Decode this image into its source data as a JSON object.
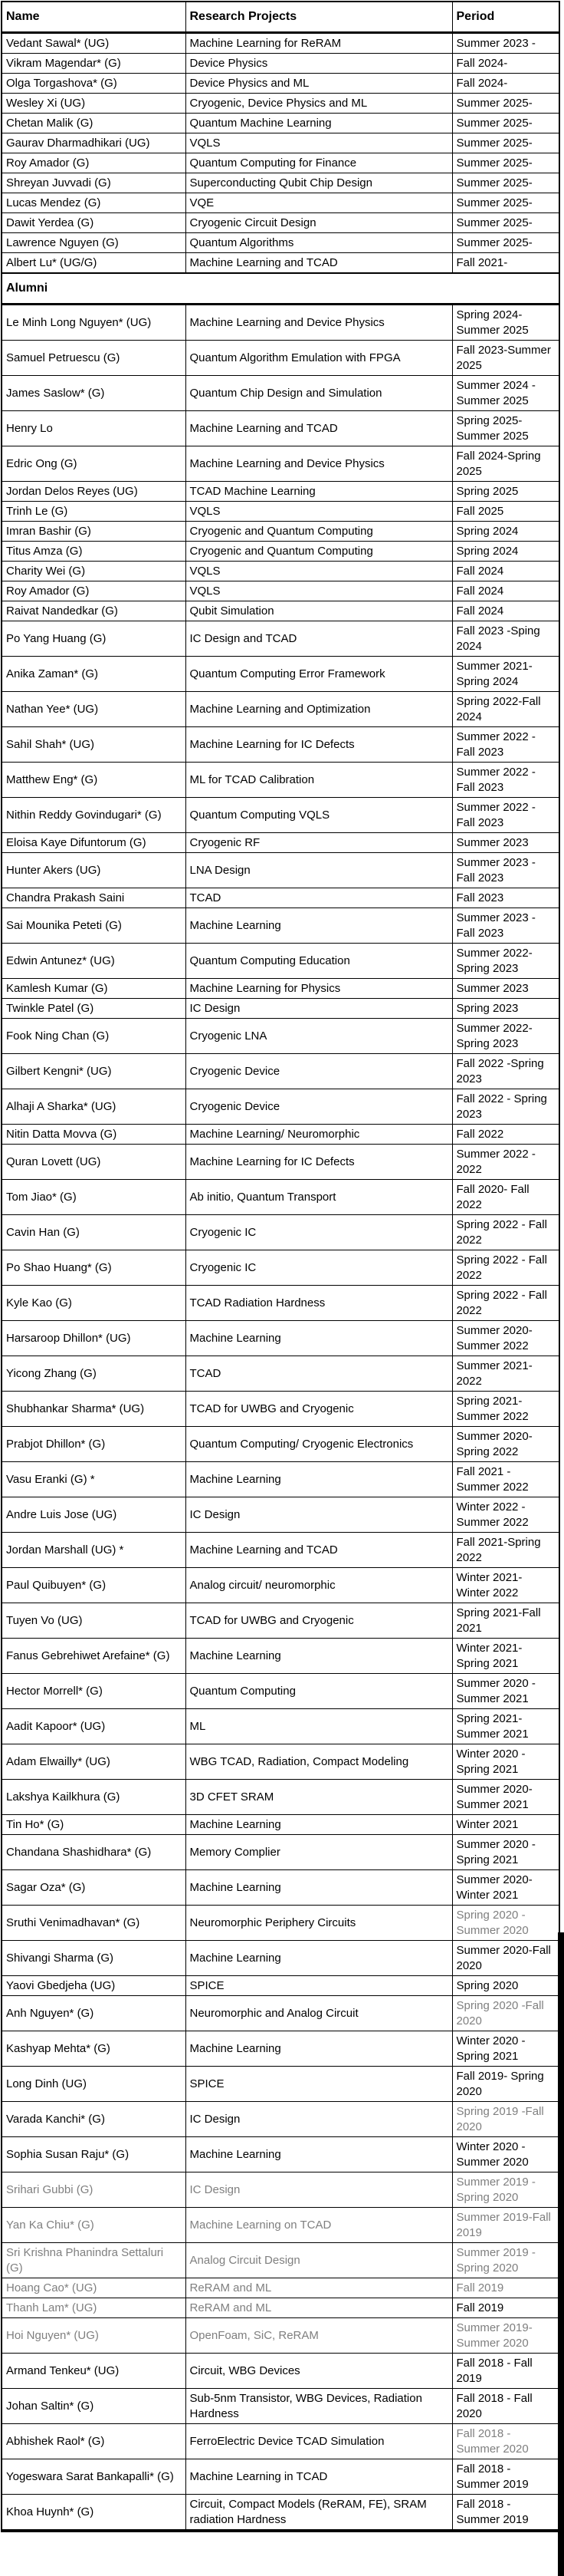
{
  "colors": {
    "text": "#000000",
    "muted_text": "#7f7f7f",
    "border": "#000000",
    "background": "#ffffff"
  },
  "table": {
    "headers": [
      "Name",
      "Research Projects",
      "Period"
    ],
    "section_label": "Alumni",
    "current": [
      {
        "name": "Vedant Sawal* (UG)",
        "project": "Machine Learning for ReRAM",
        "period": "Summer 2023 -"
      },
      {
        "name": "Vikram Magendar* (G)",
        "project": "Device Physics",
        "period": "Fall 2024-"
      },
      {
        "name": "Olga Torgashova* (G)",
        "project": "Device Physics and ML",
        "period": "Fall 2024-"
      },
      {
        "name": "Wesley Xi (UG)",
        "project": "Cryogenic, Device Physics and ML",
        "period": "Summer 2025-"
      },
      {
        "name": "Chetan Malik (G)",
        "project": "Quantum Machine Learning",
        "period": "Summer 2025-"
      },
      {
        "name": "Gaurav Dharmadhikari (UG)",
        "project": "VQLS",
        "period": "Summer 2025-"
      },
      {
        "name": "Roy Amador (G)",
        "project": "Quantum Computing for Finance",
        "period": "Summer 2025-"
      },
      {
        "name": "Shreyan Juvvadi (G)",
        "project": "Superconducting Qubit Chip Design",
        "period": "Summer 2025-"
      },
      {
        "name": "Lucas Mendez (G)",
        "project": "VQE",
        "period": "Summer 2025-"
      },
      {
        "name": "Dawit Yerdea (G)",
        "project": "Cryogenic Circuit Design",
        "period": "Summer 2025-"
      },
      {
        "name": "Lawrence Nguyen (G)",
        "project": "Quantum Algorithms",
        "period": "Summer 2025-"
      },
      {
        "name": "Albert Lu* (UG/G)",
        "project": "Machine Learning and TCAD",
        "period": "Fall 2021-"
      }
    ],
    "alumni": [
      {
        "name": "Le Minh Long Nguyen* (UG)",
        "project": "Machine Learning and Device Physics",
        "period": "Spring 2024-Summer 2025"
      },
      {
        "name": "Samuel Petruescu (G)",
        "project": "Quantum Algorithm Emulation with FPGA",
        "period": "Fall 2023-Summer 2025"
      },
      {
        "name": "James Saslow* (G)",
        "project": "Quantum Chip Design and Simulation",
        "period": "Summer 2024 - Summer 2025"
      },
      {
        "name": "Henry Lo",
        "project": "Machine Learning and TCAD",
        "period": "Spring 2025-Summer 2025"
      },
      {
        "name": "Edric Ong (G)",
        "project": "Machine Learning and Device Physics",
        "period": "Fall 2024-Spring 2025"
      },
      {
        "name": "Jordan Delos Reyes (UG)",
        "project": "TCAD Machine Learning",
        "period": "Spring 2025"
      },
      {
        "name": "Trinh Le (G)",
        "project": "VQLS",
        "period": "Fall 2025"
      },
      {
        "name": "Imran Bashir (G)",
        "project": "Cryogenic and Quantum Computing",
        "period": "Spring 2024"
      },
      {
        "name": "Titus Amza (G)",
        "project": "Cryogenic and Quantum Computing",
        "period": "Spring 2024"
      },
      {
        "name": "Charity Wei (G)",
        "project": "VQLS",
        "period": "Fall 2024"
      },
      {
        "name": "Roy Amador  (G)",
        "project": "VQLS",
        "period": "Fall 2024"
      },
      {
        "name": "Raivat Nandedkar (G)",
        "project": "Qubit Simulation",
        "period": "Fall 2024"
      },
      {
        "name": "Po Yang Huang (G)",
        "project": "IC Design and TCAD",
        "period": "Fall 2023 -Sping 2024"
      },
      {
        "name": "Anika Zaman* (G)",
        "project": "Quantum Computing Error Framework",
        "period": "Summer 2021-Spring 2024"
      },
      {
        "name": "Nathan Yee* (UG)",
        "project": "Machine Learning and Optimization",
        "period": "Spring 2022-Fall 2024"
      },
      {
        "name": "Sahil Shah* (UG)",
        "project": "Machine Learning for IC Defects",
        "period": "Summer 2022 - Fall 2023"
      },
      {
        "name": "Matthew Eng* (G)",
        "project": "ML for TCAD Calibration",
        "period": "Summer 2022 - Fall 2023"
      },
      {
        "name": "Nithin Reddy Govindugari* (G)",
        "project": "Quantum Computing VQLS",
        "period": "Summer 2022 - Fall 2023"
      },
      {
        "name": "Eloisa Kaye Difuntorum (G)",
        "project": "Cryogenic RF",
        "period": "Summer 2023"
      },
      {
        "name": "Hunter Akers (UG)",
        "project": "LNA Design",
        "period": "Summer 2023 - Fall 2023"
      },
      {
        "name": "Chandra Prakash Saini",
        "project": "TCAD",
        "period": "Fall 2023"
      },
      {
        "name": "Sai Mounika Peteti (G)",
        "project": "Machine Learning",
        "period": "Summer 2023 - Fall 2023"
      },
      {
        "name": "Edwin Antunez* (UG)",
        "project": "Quantum Computing Education",
        "period": "Summer 2022-Spring 2023"
      },
      {
        "name": "Kamlesh Kumar (G)",
        "project": "Machine Learning for Physics",
        "period": "Summer 2023"
      },
      {
        "name": "Twinkle Patel (G)",
        "project": "IC Design",
        "period": "Spring 2023"
      },
      {
        "name": "Fook Ning Chan (G)",
        "project": "Cryogenic LNA",
        "period": "Summer 2022-Spring 2023"
      },
      {
        "name": "Gilbert Kengni* (UG)",
        "project": "Cryogenic Device",
        "period": "Fall 2022 -Spring 2023"
      },
      {
        "name": "Alhaji A Sharka* (UG)",
        "project": "Cryogenic Device",
        "period": "Fall 2022 - Spring 2023"
      },
      {
        "name": "Nitin Datta Movva (G)",
        "project": "Machine Learning/ Neuromorphic",
        "period": "Fall 2022"
      },
      {
        "name": "Quran Lovett (UG)",
        "project": "Machine Learning for IC Defects",
        "period": "Summer 2022 - 2022"
      },
      {
        "name": "Tom Jiao* (G)",
        "project": "Ab initio, Quantum Transport",
        "period": "Fall 2020- Fall 2022"
      },
      {
        "name": "Cavin Han (G)",
        "project": "Cryogenic IC",
        "period": "Spring 2022 - Fall 2022"
      },
      {
        "name": "Po Shao Huang* (G)",
        "project": "Cryogenic IC",
        "period": "Spring 2022 - Fall 2022"
      },
      {
        "name": "Kyle Kao (G)",
        "project": "TCAD Radiation Hardness",
        "period": "Spring 2022 - Fall 2022"
      },
      {
        "name": "Harsaroop Dhillon* (UG)",
        "project": "Machine Learning",
        "period": "Summer 2020-Summer 2022"
      },
      {
        "name": "Yicong Zhang (G)",
        "project": "TCAD",
        "period": "Summer 2021-2022"
      },
      {
        "name": "Shubhankar Sharma* (UG)",
        "project": "TCAD for UWBG and Cryogenic",
        "period": "Spring 2021-Summer 2022"
      },
      {
        "name": "Prabjot Dhillon* (G)",
        "project": "Quantum Computing/ Cryogenic Electronics",
        "period": "Summer 2020-Spring 2022"
      },
      {
        "name": "Vasu Eranki (G) *",
        "project": "Machine Learning",
        "period": "Fall 2021 - Summer 2022"
      },
      {
        "name": "Andre Luis Jose (UG)",
        "project": "IC Design",
        "period": "Winter 2022 - Summer 2022"
      },
      {
        "name": "Jordan Marshall (UG) *",
        "project": "Machine Learning and TCAD",
        "period": "Fall 2021-Spring 2022"
      },
      {
        "name": "Paul Quibuyen* (G)",
        "project": "Analog circuit/ neuromorphic",
        "period": "Winter 2021-Winter 2022"
      },
      {
        "name": "Tuyen Vo (UG)",
        "project": "TCAD for UWBG and Cryogenic",
        "period": "Spring 2021-Fall 2021"
      },
      {
        "name": "Fanus Gebrehiwet Arefaine* (G)",
        "project": "Machine Learning",
        "period": "Winter 2021-Spring 2021"
      },
      {
        "name": "Hector Morrell* (G)",
        "project": "Quantum Computing",
        "period": "Summer 2020 - Summer 2021"
      },
      {
        "name": "Aadit Kapoor* (UG)",
        "project": "ML",
        "period": "Spring 2021-Summer 2021"
      },
      {
        "name": "Adam Elwailly* (UG)",
        "project": "WBG TCAD, Radiation, Compact Modeling",
        "period": "Winter 2020 - Spring 2021"
      },
      {
        "name": "Lakshya Kailkhura (G)",
        "project": "3D CFET SRAM",
        "period": "Summer 2020-Summer 2021"
      },
      {
        "name": "Tin Ho* (G)",
        "project": "Machine Learning",
        "period": "Winter 2021"
      },
      {
        "name": "Chandana Shashidhara* (G)",
        "project": "Memory Complier",
        "period": "Summer 2020 - Spring 2021"
      },
      {
        "name": "Sagar Oza* (G)",
        "project": "Machine Learning",
        "period": "Summer 2020-Winter 2021"
      },
      {
        "name": "Sruthi Venimadhavan* (G)",
        "project": "Neuromorphic Periphery Circuits",
        "period": "Spring 2020 - Summer 2020",
        "muted": [
          "period"
        ]
      },
      {
        "name": "Shivangi Sharma (G)",
        "project": "Machine Learning",
        "period": "Summer 2020-Fall 2020"
      },
      {
        "name": "Yaovi Gbedjeha (UG)",
        "project": "SPICE",
        "period": "Spring 2020"
      },
      {
        "name": "Anh Nguyen* (G)",
        "project": "Neuromorphic and Analog Circuit",
        "period": "Spring 2020 -Fall 2020",
        "muted": [
          "period"
        ]
      },
      {
        "name": "Kashyap Mehta* (G)",
        "project": "Machine Learning",
        "period": "Winter 2020 - Spring 2021"
      },
      {
        "name": "Long Dinh (UG)",
        "project": "SPICE",
        "period": "Fall 2019- Spring 2020"
      },
      {
        "name": "Varada Kanchi* (G)",
        "project": "IC Design",
        "period": "Spring 2019 -Fall 2020",
        "muted": [
          "period"
        ]
      },
      {
        "name": "Sophia Susan Raju* (G)",
        "project": "Machine Learning",
        "period": "Winter 2020 - Summer 2020"
      },
      {
        "name": "Srihari Gubbi (G)",
        "project": "IC Design",
        "period": "Summer 2019 - Spring 2020",
        "muted": [
          "name",
          "project",
          "period"
        ]
      },
      {
        "name": "Yan Ka Chiu* (G)",
        "project": "Machine Learning on TCAD",
        "period": "Summer 2019-Fall 2019",
        "muted": [
          "name",
          "project",
          "period"
        ]
      },
      {
        "name": "Sri Krishna Phanindra Settaluri (G)",
        "project": "Analog Circuit Design",
        "period": "Summer 2019 - Spring 2020",
        "muted": [
          "name",
          "project",
          "period"
        ]
      },
      {
        "name": "Hoang Cao* (UG)",
        "project": "ReRAM and ML",
        "period": "Fall 2019",
        "muted": [
          "name",
          "project",
          "period"
        ]
      },
      {
        "name": "Thanh Lam* (UG)",
        "project": "ReRAM and ML",
        "period": "Fall 2019",
        "muted": [
          "name",
          "project"
        ]
      },
      {
        "name": "Hoi Nguyen* (UG)",
        "project": "OpenFoam, SiC, ReRAM",
        "period": "Summer 2019-Summer 2020",
        "muted": [
          "name",
          "project",
          "period"
        ]
      },
      {
        "name": "Armand Tenkeu* (UG)",
        "project": "Circuit, WBG Devices",
        "period": "Fall 2018 - Fall 2019"
      },
      {
        "name": "Johan Saltin* (G)",
        "project": "Sub-5nm Transistor, WBG Devices, Radiation Hardness",
        "period": "Fall 2018 - Fall 2020"
      },
      {
        "name": "Abhishek Raol* (G)",
        "project": "FerroElectric Device TCAD Simulation",
        "period": "Fall 2018 - Summer 2020",
        "muted": [
          "period"
        ]
      },
      {
        "name": "Yogeswara Sarat Bankapalli* (G)",
        "project": "Machine Learning in TCAD",
        "period": "Fall 2018 - Summer 2019"
      },
      {
        "name": "Khoa Huynh* (G)",
        "project": "Circuit, Compact Models (ReRAM, FE), SRAM radiation Hardness",
        "period": "Fall 2018 - Summer 2019"
      }
    ]
  }
}
